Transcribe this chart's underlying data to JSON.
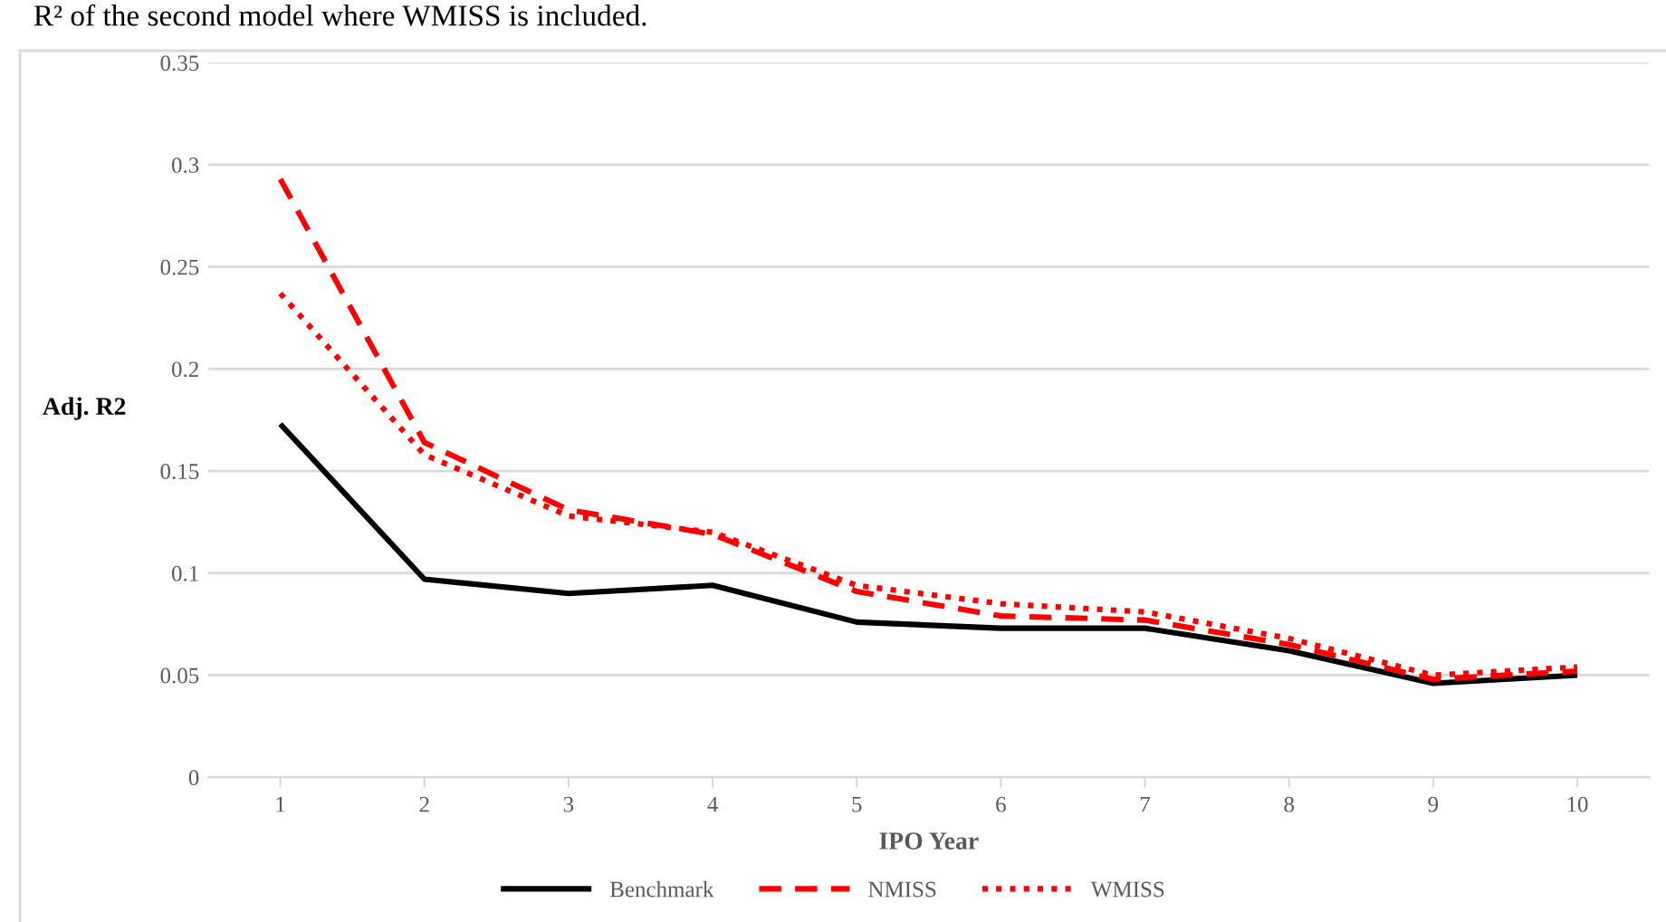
{
  "chart_data": {
    "type": "line",
    "annotations": [
      "R² of the second model where WMISS is included."
    ],
    "xlabel": "IPO Year",
    "ylabel": "Adj. R2",
    "categories": [
      "1",
      "2",
      "3",
      "4",
      "5",
      "6",
      "7",
      "8",
      "9",
      "10"
    ],
    "series": [
      {
        "name": "Benchmark",
        "color": "#000000",
        "line_style": "solid",
        "values": [
          0.173,
          0.097,
          0.09,
          0.094,
          0.076,
          0.073,
          0.073,
          0.062,
          0.046,
          0.05
        ]
      },
      {
        "name": "NMISS",
        "color": "#ff0000",
        "line_style": "dashed",
        "values": [
          0.293,
          0.164,
          0.131,
          0.119,
          0.091,
          0.079,
          0.077,
          0.065,
          0.048,
          0.052
        ]
      },
      {
        "name": "WMISS",
        "color": "#ff0000",
        "line_style": "dotted",
        "values": [
          0.237,
          0.158,
          0.128,
          0.12,
          0.094,
          0.085,
          0.081,
          0.068,
          0.05,
          0.054
        ]
      }
    ],
    "ylim": [
      0,
      0.35
    ],
    "yticks": [
      0,
      0.05,
      0.1,
      0.15,
      0.2,
      0.25,
      0.3,
      0.35
    ],
    "grid": "y",
    "legend": "bottom"
  }
}
